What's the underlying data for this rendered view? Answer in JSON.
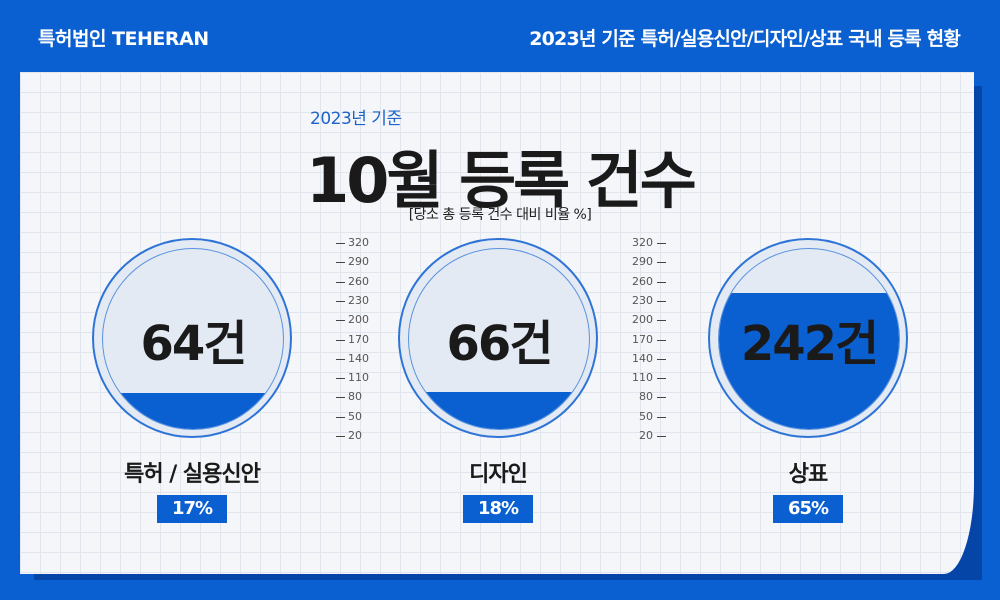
{
  "header": {
    "brand": "특허법인 TEHERAN",
    "title": "2023년 기준 특허/실용신안/디자인/상표 국내 등록 현황"
  },
  "headline": {
    "subtitle": "2023년 기준",
    "title": "10월 등록 건수",
    "note": "[당소 총 등록 건수 대비 비율 %]"
  },
  "colors": {
    "accent": "#0a5fd1",
    "gauge_bg": "#e4eaf3"
  },
  "chart_data": {
    "type": "gauge",
    "scale_ticks": [
      "320",
      "290",
      "260",
      "230",
      "200",
      "170",
      "140",
      "110",
      "80",
      "50",
      "20"
    ],
    "categories": [
      "특허 / 실용신안",
      "디자인",
      "상표"
    ],
    "counts": [
      64,
      66,
      242
    ],
    "count_labels": [
      "64건",
      "66건",
      "242건"
    ],
    "percents": [
      17,
      18,
      65
    ],
    "percent_labels": [
      "17%",
      "18%",
      "65%"
    ]
  }
}
